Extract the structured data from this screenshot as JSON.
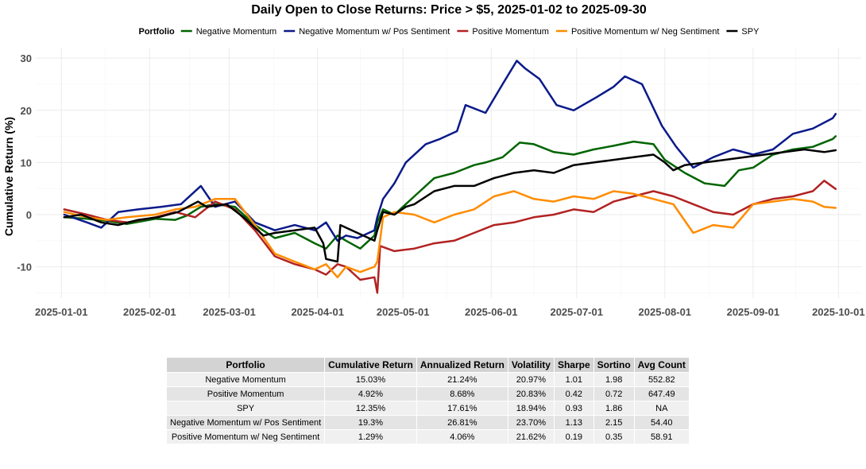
{
  "chart_data": {
    "type": "line",
    "title": "Daily Open to Close Returns: Price > $5, 2025-01-02 to 2025-09-30",
    "xlabel": "",
    "ylabel": "Cumulative Return (%)",
    "legend_title": "Portfolio",
    "legend_position": "top",
    "grid": true,
    "ylim": [
      -16,
      32
    ],
    "xlim": [
      "2024-12-23",
      "2025-10-09"
    ],
    "x_ticks": [
      "2025-01-01",
      "2025-02-01",
      "2025-03-01",
      "2025-04-01",
      "2025-05-01",
      "2025-06-01",
      "2025-07-01",
      "2025-08-01",
      "2025-09-01",
      "2025-10-01"
    ],
    "y_ticks": [
      -10,
      0,
      10,
      20,
      30
    ],
    "series": [
      {
        "name": "Negative Momentum",
        "color": "#006400",
        "points": [
          [
            "2025-01-02",
            -0.5
          ],
          [
            "2025-01-10",
            -0.8
          ],
          [
            "2025-01-17",
            -1.2
          ],
          [
            "2025-01-24",
            -1.8
          ],
          [
            "2025-02-03",
            -0.8
          ],
          [
            "2025-02-10",
            -1.0
          ],
          [
            "2025-02-14",
            -0.2
          ],
          [
            "2025-02-19",
            1.5
          ],
          [
            "2025-02-24",
            2.0
          ],
          [
            "2025-03-03",
            1.5
          ],
          [
            "2025-03-10",
            -2.0
          ],
          [
            "2025-03-17",
            -4.5
          ],
          [
            "2025-03-24",
            -3.5
          ],
          [
            "2025-03-31",
            -5.5
          ],
          [
            "2025-04-04",
            -6.5
          ],
          [
            "2025-04-08",
            -4.0
          ],
          [
            "2025-04-11",
            -5.0
          ],
          [
            "2025-04-16",
            -6.5
          ],
          [
            "2025-04-21",
            -4.0
          ],
          [
            "2025-04-22",
            -1.5
          ],
          [
            "2025-04-24",
            1.0
          ],
          [
            "2025-04-28",
            0.0
          ],
          [
            "2025-05-05",
            3.5
          ],
          [
            "2025-05-12",
            7.0
          ],
          [
            "2025-05-19",
            8.0
          ],
          [
            "2025-05-26",
            9.5
          ],
          [
            "2025-05-30",
            10.0
          ],
          [
            "2025-06-05",
            11.0
          ],
          [
            "2025-06-11",
            13.8
          ],
          [
            "2025-06-16",
            13.5
          ],
          [
            "2025-06-23",
            12.0
          ],
          [
            "2025-06-30",
            11.5
          ],
          [
            "2025-07-07",
            12.5
          ],
          [
            "2025-07-14",
            13.2
          ],
          [
            "2025-07-21",
            14.0
          ],
          [
            "2025-07-28",
            13.5
          ],
          [
            "2025-08-01",
            10.5
          ],
          [
            "2025-08-08",
            8.0
          ],
          [
            "2025-08-15",
            6.0
          ],
          [
            "2025-08-22",
            5.5
          ],
          [
            "2025-08-27",
            8.5
          ],
          [
            "2025-09-01",
            9.0
          ],
          [
            "2025-09-08",
            11.5
          ],
          [
            "2025-09-15",
            12.5
          ],
          [
            "2025-09-22",
            13.0
          ],
          [
            "2025-09-29",
            14.5
          ],
          [
            "2025-09-30",
            15.03
          ]
        ]
      },
      {
        "name": "Negative Momentum w/ Pos Sentiment",
        "color": "#0b1a8a",
        "points": [
          [
            "2025-01-02",
            0.0
          ],
          [
            "2025-01-10",
            -1.5
          ],
          [
            "2025-01-15",
            -2.5
          ],
          [
            "2025-01-21",
            0.5
          ],
          [
            "2025-01-28",
            1.0
          ],
          [
            "2025-02-05",
            1.5
          ],
          [
            "2025-02-12",
            2.0
          ],
          [
            "2025-02-19",
            5.5
          ],
          [
            "2025-02-24",
            1.5
          ],
          [
            "2025-03-03",
            2.5
          ],
          [
            "2025-03-10",
            -1.5
          ],
          [
            "2025-03-17",
            -3.0
          ],
          [
            "2025-03-24",
            -2.0
          ],
          [
            "2025-03-31",
            -3.0
          ],
          [
            "2025-04-04",
            -1.5
          ],
          [
            "2025-04-08",
            -5.0
          ],
          [
            "2025-04-11",
            -4.0
          ],
          [
            "2025-04-15",
            -4.5
          ],
          [
            "2025-04-21",
            -3.0
          ],
          [
            "2025-04-22",
            -0.5
          ],
          [
            "2025-04-24",
            3.0
          ],
          [
            "2025-04-28",
            6.0
          ],
          [
            "2025-05-02",
            10.0
          ],
          [
            "2025-05-09",
            13.5
          ],
          [
            "2025-05-14",
            14.5
          ],
          [
            "2025-05-20",
            16.0
          ],
          [
            "2025-05-23",
            21.0
          ],
          [
            "2025-05-30",
            19.5
          ],
          [
            "2025-06-05",
            25.0
          ],
          [
            "2025-06-10",
            29.5
          ],
          [
            "2025-06-13",
            28.0
          ],
          [
            "2025-06-18",
            26.0
          ],
          [
            "2025-06-24",
            21.0
          ],
          [
            "2025-06-30",
            20.0
          ],
          [
            "2025-07-08",
            22.5
          ],
          [
            "2025-07-14",
            24.5
          ],
          [
            "2025-07-18",
            26.5
          ],
          [
            "2025-07-24",
            25.0
          ],
          [
            "2025-07-31",
            17.0
          ],
          [
            "2025-08-05",
            13.0
          ],
          [
            "2025-08-11",
            9.0
          ],
          [
            "2025-08-18",
            11.0
          ],
          [
            "2025-08-25",
            12.5
          ],
          [
            "2025-09-01",
            11.5
          ],
          [
            "2025-09-08",
            12.5
          ],
          [
            "2025-09-15",
            15.5
          ],
          [
            "2025-09-22",
            16.5
          ],
          [
            "2025-09-29",
            18.5
          ],
          [
            "2025-09-30",
            19.3
          ]
        ]
      },
      {
        "name": "Positive Momentum",
        "color": "#b22222",
        "points": [
          [
            "2025-01-02",
            1.0
          ],
          [
            "2025-01-10",
            0.0
          ],
          [
            "2025-01-17",
            -1.0
          ],
          [
            "2025-01-24",
            -1.5
          ],
          [
            "2025-02-03",
            -0.5
          ],
          [
            "2025-02-10",
            0.5
          ],
          [
            "2025-02-17",
            -0.5
          ],
          [
            "2025-02-24",
            2.5
          ],
          [
            "2025-03-03",
            1.0
          ],
          [
            "2025-03-10",
            -3.0
          ],
          [
            "2025-03-17",
            -8.0
          ],
          [
            "2025-03-24",
            -9.5
          ],
          [
            "2025-03-31",
            -10.5
          ],
          [
            "2025-04-04",
            -11.5
          ],
          [
            "2025-04-08",
            -9.5
          ],
          [
            "2025-04-11",
            -10.0
          ],
          [
            "2025-04-16",
            -12.5
          ],
          [
            "2025-04-21",
            -12.0
          ],
          [
            "2025-04-22",
            -15.0
          ],
          [
            "2025-04-23",
            -6.0
          ],
          [
            "2025-04-28",
            -7.0
          ],
          [
            "2025-05-05",
            -6.5
          ],
          [
            "2025-05-12",
            -5.5
          ],
          [
            "2025-05-19",
            -5.0
          ],
          [
            "2025-05-26",
            -3.5
          ],
          [
            "2025-06-02",
            -2.0
          ],
          [
            "2025-06-09",
            -1.5
          ],
          [
            "2025-06-16",
            -0.5
          ],
          [
            "2025-06-23",
            0.0
          ],
          [
            "2025-06-30",
            1.0
          ],
          [
            "2025-07-07",
            0.5
          ],
          [
            "2025-07-14",
            2.5
          ],
          [
            "2025-07-21",
            3.5
          ],
          [
            "2025-07-28",
            4.5
          ],
          [
            "2025-08-04",
            3.5
          ],
          [
            "2025-08-11",
            2.0
          ],
          [
            "2025-08-18",
            0.5
          ],
          [
            "2025-08-25",
            0.0
          ],
          [
            "2025-09-01",
            2.0
          ],
          [
            "2025-09-08",
            3.0
          ],
          [
            "2025-09-15",
            3.5
          ],
          [
            "2025-09-22",
            4.5
          ],
          [
            "2025-09-26",
            6.5
          ],
          [
            "2025-09-30",
            4.92
          ]
        ]
      },
      {
        "name": "Positive Momentum w/ Neg Sentiment",
        "color": "#ff8c00",
        "points": [
          [
            "2025-01-02",
            0.5
          ],
          [
            "2025-01-10",
            -0.5
          ],
          [
            "2025-01-17",
            -1.0
          ],
          [
            "2025-01-24",
            -0.5
          ],
          [
            "2025-02-03",
            0.0
          ],
          [
            "2025-02-10",
            1.0
          ],
          [
            "2025-02-17",
            1.5
          ],
          [
            "2025-02-24",
            3.0
          ],
          [
            "2025-03-03",
            3.0
          ],
          [
            "2025-03-10",
            -2.0
          ],
          [
            "2025-03-17",
            -7.5
          ],
          [
            "2025-03-24",
            -9.0
          ],
          [
            "2025-03-31",
            -10.5
          ],
          [
            "2025-04-04",
            -9.5
          ],
          [
            "2025-04-08",
            -12.0
          ],
          [
            "2025-04-11",
            -10.0
          ],
          [
            "2025-04-16",
            -11.0
          ],
          [
            "2025-04-21",
            -10.0
          ],
          [
            "2025-04-22",
            -9.0
          ],
          [
            "2025-04-24",
            -0.5
          ],
          [
            "2025-04-28",
            0.5
          ],
          [
            "2025-05-05",
            0.0
          ],
          [
            "2025-05-12",
            -1.5
          ],
          [
            "2025-05-19",
            0.0
          ],
          [
            "2025-05-26",
            1.0
          ],
          [
            "2025-06-02",
            3.5
          ],
          [
            "2025-06-09",
            4.5
          ],
          [
            "2025-06-16",
            3.0
          ],
          [
            "2025-06-23",
            2.5
          ],
          [
            "2025-06-30",
            3.5
          ],
          [
            "2025-07-07",
            3.0
          ],
          [
            "2025-07-14",
            4.5
          ],
          [
            "2025-07-21",
            4.0
          ],
          [
            "2025-07-28",
            3.0
          ],
          [
            "2025-08-04",
            2.0
          ],
          [
            "2025-08-11",
            -3.5
          ],
          [
            "2025-08-18",
            -2.0
          ],
          [
            "2025-08-25",
            -2.5
          ],
          [
            "2025-09-01",
            2.0
          ],
          [
            "2025-09-08",
            2.5
          ],
          [
            "2025-09-15",
            3.0
          ],
          [
            "2025-09-22",
            2.5
          ],
          [
            "2025-09-26",
            1.5
          ],
          [
            "2025-09-30",
            1.29
          ]
        ]
      },
      {
        "name": "SPY",
        "color": "#000000",
        "points": [
          [
            "2025-01-02",
            -0.5
          ],
          [
            "2025-01-08",
            0.0
          ],
          [
            "2025-01-15",
            -1.5
          ],
          [
            "2025-01-21",
            -2.0
          ],
          [
            "2025-01-28",
            -1.0
          ],
          [
            "2025-02-04",
            -0.5
          ],
          [
            "2025-02-11",
            0.5
          ],
          [
            "2025-02-18",
            2.5
          ],
          [
            "2025-02-21",
            1.5
          ],
          [
            "2025-02-28",
            2.0
          ],
          [
            "2025-03-06",
            -0.5
          ],
          [
            "2025-03-10",
            -2.5
          ],
          [
            "2025-03-13",
            -4.0
          ],
          [
            "2025-03-17",
            -3.5
          ],
          [
            "2025-03-24",
            -3.0
          ],
          [
            "2025-03-31",
            -2.5
          ],
          [
            "2025-04-03",
            -5.5
          ],
          [
            "2025-04-04",
            -8.5
          ],
          [
            "2025-04-08",
            -9.0
          ],
          [
            "2025-04-09",
            -2.0
          ],
          [
            "2025-04-15",
            -3.5
          ],
          [
            "2025-04-21",
            -5.0
          ],
          [
            "2025-04-22",
            -3.0
          ],
          [
            "2025-04-24",
            0.5
          ],
          [
            "2025-04-28",
            0.0
          ],
          [
            "2025-05-02",
            1.5
          ],
          [
            "2025-05-05",
            2.0
          ],
          [
            "2025-05-12",
            4.5
          ],
          [
            "2025-05-19",
            5.5
          ],
          [
            "2025-05-26",
            5.5
          ],
          [
            "2025-06-02",
            7.0
          ],
          [
            "2025-06-09",
            8.0
          ],
          [
            "2025-06-16",
            8.5
          ],
          [
            "2025-06-23",
            8.0
          ],
          [
            "2025-06-30",
            9.5
          ],
          [
            "2025-07-07",
            10.0
          ],
          [
            "2025-07-14",
            10.5
          ],
          [
            "2025-07-21",
            11.0
          ],
          [
            "2025-07-28",
            11.5
          ],
          [
            "2025-08-01",
            10.0
          ],
          [
            "2025-08-04",
            8.5
          ],
          [
            "2025-08-08",
            9.5
          ],
          [
            "2025-08-15",
            10.0
          ],
          [
            "2025-08-22",
            10.5
          ],
          [
            "2025-08-29",
            11.0
          ],
          [
            "2025-09-05",
            11.5
          ],
          [
            "2025-09-12",
            12.0
          ],
          [
            "2025-09-19",
            12.5
          ],
          [
            "2025-09-26",
            12.0
          ],
          [
            "2025-09-30",
            12.35
          ]
        ]
      }
    ]
  },
  "table": {
    "headers": [
      "Portfolio",
      "Cumulative Return",
      "Annualized Return",
      "Volatility",
      "Sharpe",
      "Sortino",
      "Avg Count"
    ],
    "rows": [
      [
        "Negative Momentum",
        "15.03%",
        "21.24%",
        "20.97%",
        "1.01",
        "1.98",
        "552.82"
      ],
      [
        "Positive Momentum",
        "4.92%",
        "8.68%",
        "20.83%",
        "0.42",
        "0.72",
        "647.49"
      ],
      [
        "SPY",
        "12.35%",
        "17.61%",
        "18.94%",
        "0.93",
        "1.86",
        "NA"
      ],
      [
        "Negative Momentum w/ Pos Sentiment",
        "19.3%",
        "26.81%",
        "23.70%",
        "1.13",
        "2.15",
        "54.40"
      ],
      [
        "Positive Momentum w/ Neg Sentiment",
        "1.29%",
        "4.06%",
        "21.62%",
        "0.19",
        "0.35",
        "58.91"
      ]
    ]
  }
}
